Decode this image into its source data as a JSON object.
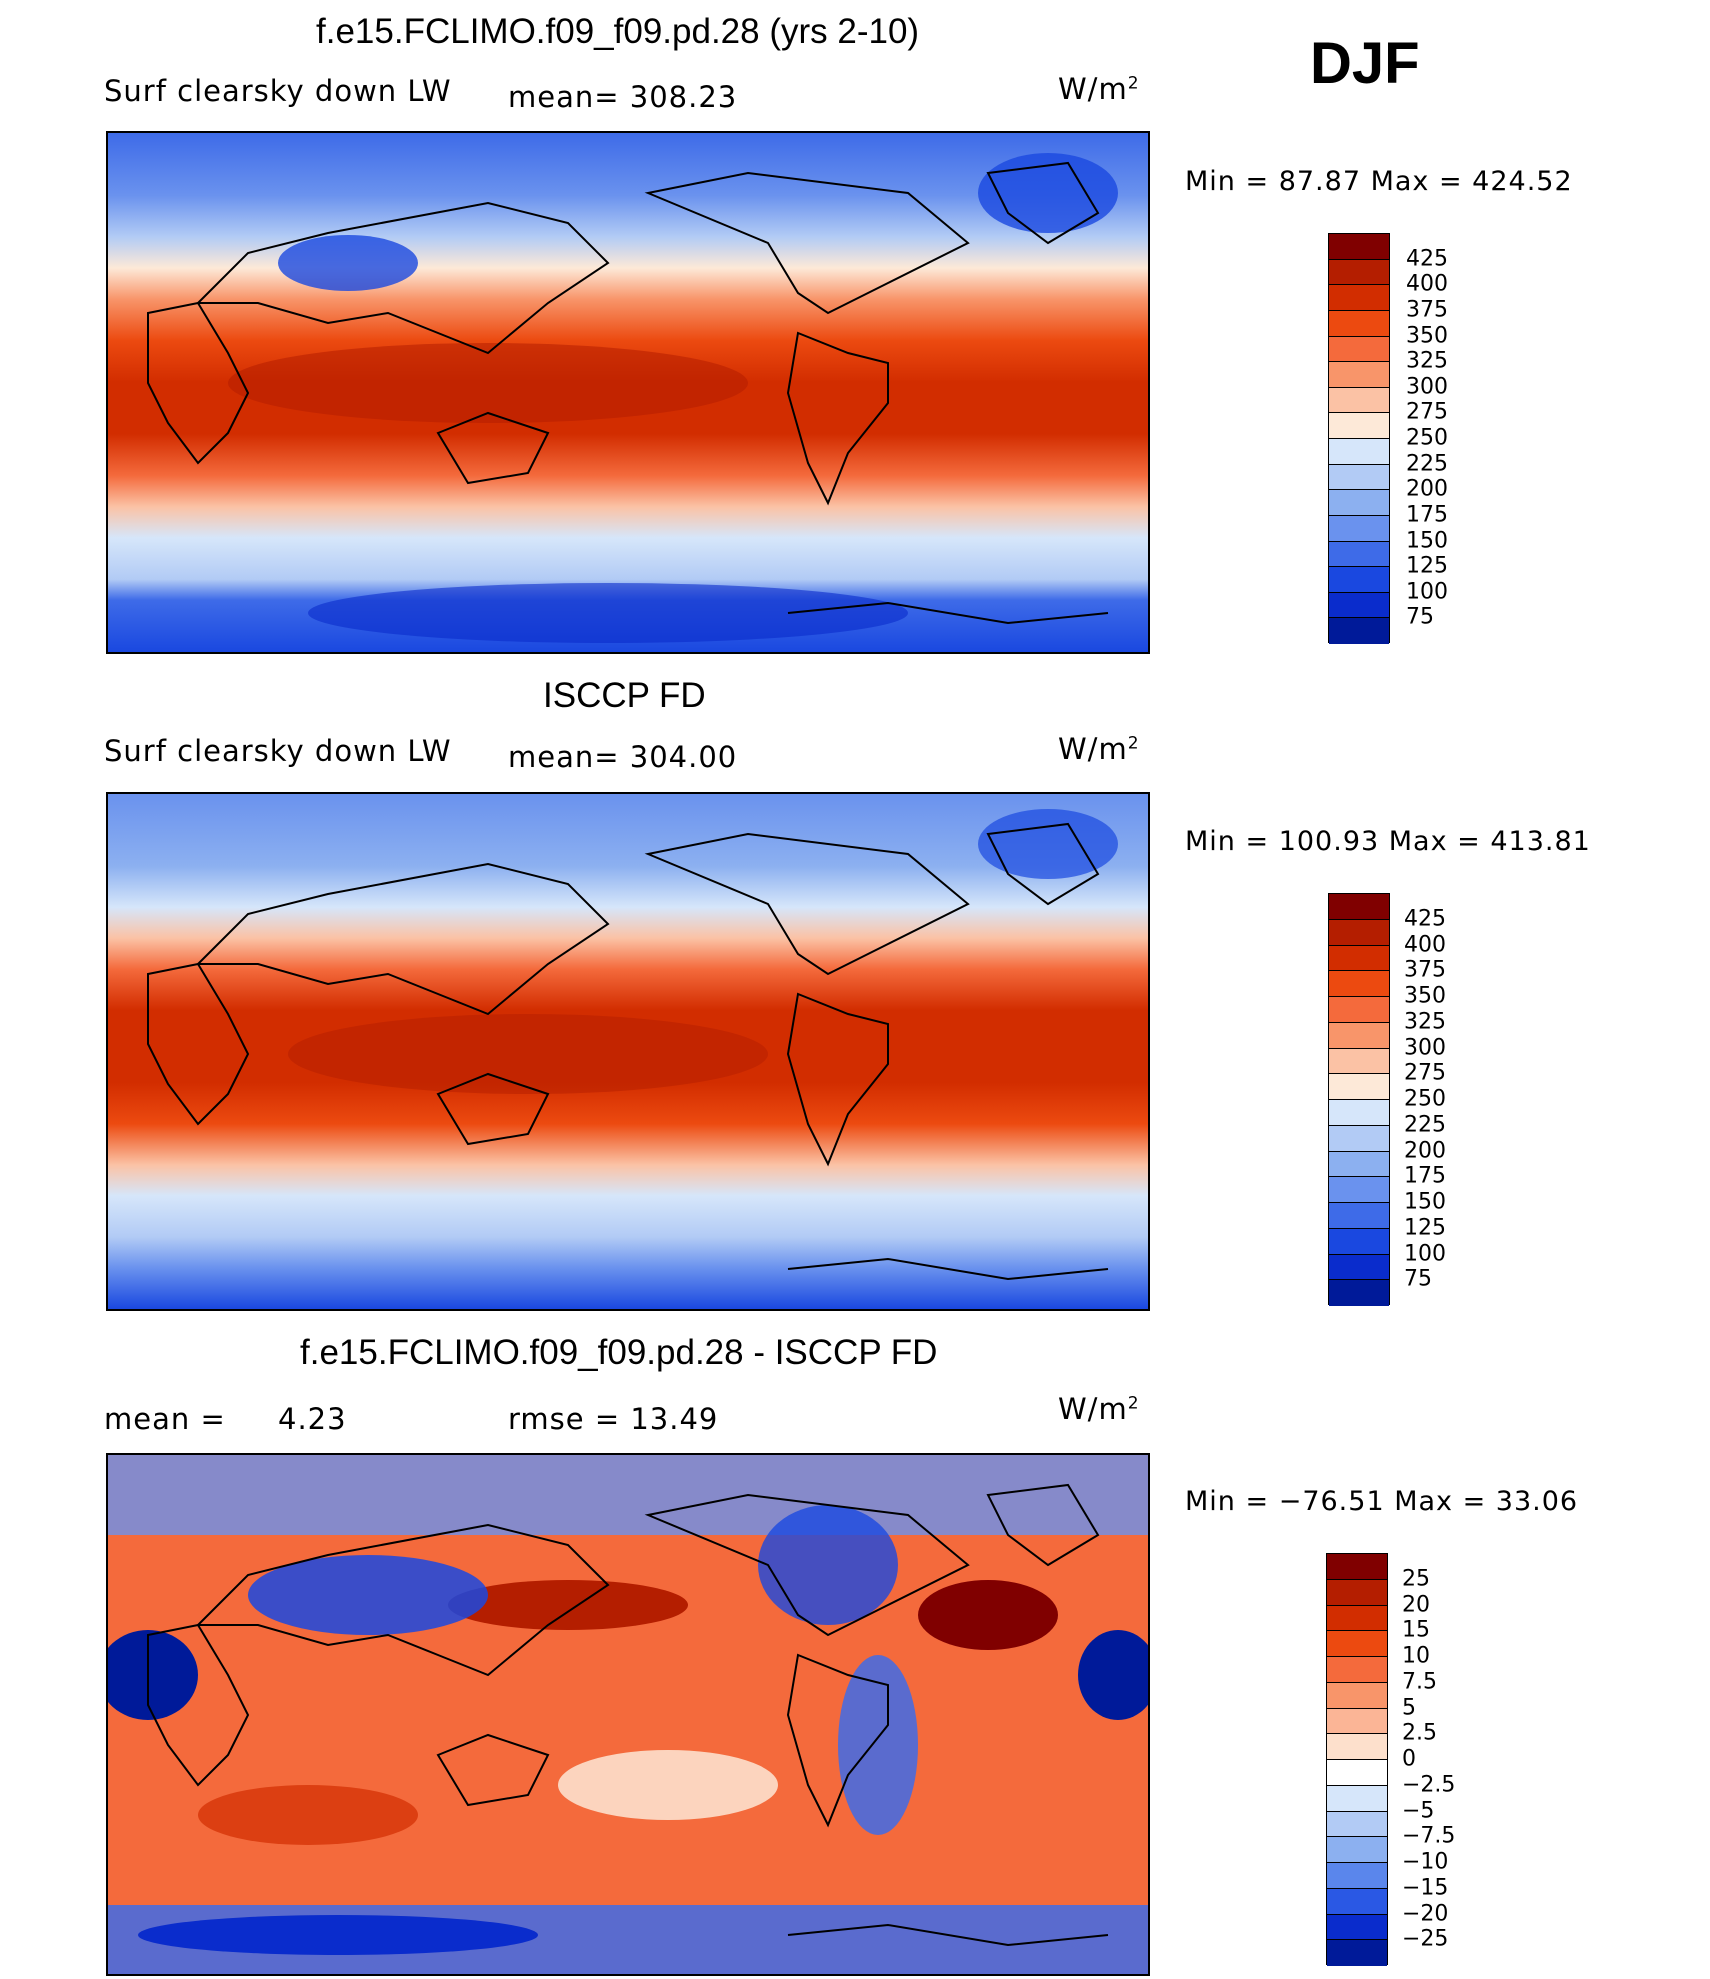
{
  "season": "DJF",
  "panels": [
    {
      "title": "f.e15.FCLIMO.f09_f09.pd.28 (yrs 2-10)",
      "variable": "Surf clearsky down LW",
      "stat1": "mean=  308.23",
      "stat2": "",
      "units": "W/m",
      "units_sup": "2",
      "minmax": "Min =   87.87 Max = 424.52",
      "colorbar": {
        "labels": [
          "425",
          "400",
          "375",
          "350",
          "325",
          "300",
          "275",
          "250",
          "225",
          "200",
          "175",
          "150",
          "125",
          "100",
          "75"
        ],
        "colors": [
          "#800000",
          "#b41e00",
          "#d22d00",
          "#ec4a10",
          "#f46a3c",
          "#f8956a",
          "#fbc2a5",
          "#fde9d8",
          "#d6e6fa",
          "#b2cbf5",
          "#8cb0f0",
          "#6a92ee",
          "#3e6be8",
          "#1a48e0",
          "#0a2ccc",
          "#001a99"
        ]
      }
    },
    {
      "title": "ISCCP FD",
      "variable": "Surf clearsky down LW",
      "stat1": "mean=  304.00",
      "stat2": "",
      "units": "W/m",
      "units_sup": "2",
      "minmax": "Min = 100.93 Max = 413.81",
      "colorbar": {
        "labels": [
          "425",
          "400",
          "375",
          "350",
          "325",
          "300",
          "275",
          "250",
          "225",
          "200",
          "175",
          "150",
          "125",
          "100",
          "75"
        ],
        "colors": [
          "#800000",
          "#b41e00",
          "#d22d00",
          "#ec4a10",
          "#f46a3c",
          "#f8956a",
          "#fbc2a5",
          "#fde9d8",
          "#d6e6fa",
          "#b2cbf5",
          "#8cb0f0",
          "#6a92ee",
          "#3e6be8",
          "#1a48e0",
          "#0a2ccc",
          "#001a99"
        ]
      }
    },
    {
      "title": "f.e15.FCLIMO.f09_f09.pd.28 - ISCCP FD",
      "variable": "mean =",
      "stat1": "4.23",
      "stat2": "rmse =    13.49",
      "units": "W/m",
      "units_sup": "2",
      "minmax": "Min = −76.51 Max =   33.06",
      "colorbar": {
        "labels": [
          "25",
          "20",
          "15",
          "10",
          "7.5",
          "5",
          "2.5",
          "0",
          "−2.5",
          "−5",
          "−7.5",
          "−10",
          "−15",
          "−20",
          "−25"
        ],
        "colors": [
          "#800000",
          "#b41e00",
          "#d22d00",
          "#ec4a10",
          "#f46a3c",
          "#f8956a",
          "#fbb596",
          "#fde0cc",
          "#ffffff",
          "#d6e6fa",
          "#b2cbf5",
          "#8cb0f0",
          "#5a86ec",
          "#2a58e4",
          "#0a2ccc",
          "#001a99"
        ]
      }
    }
  ]
}
